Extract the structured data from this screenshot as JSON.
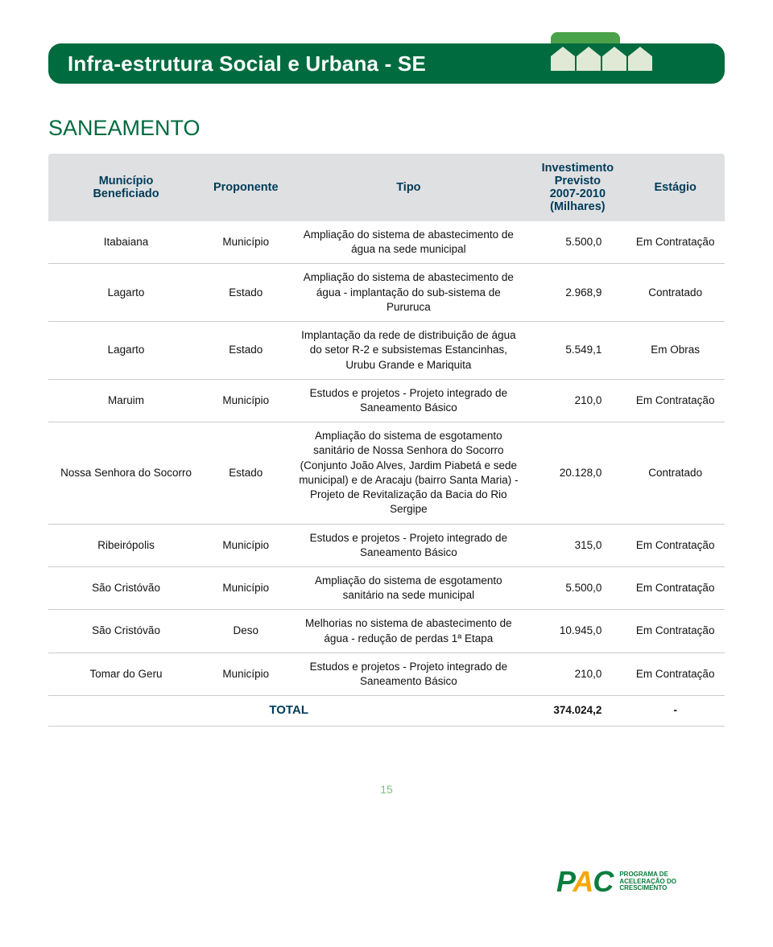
{
  "header": {
    "title": "Infra-estrutura Social e Urbana - SE"
  },
  "section": {
    "title": "SANEAMENTO"
  },
  "table": {
    "columns": {
      "col0": "Município\nBeneficiado",
      "col1": "Proponente",
      "col2": "Tipo",
      "col3": "Investimento\nPrevisto\n2007-2010\n(Milhares)",
      "col4": "Estágio"
    },
    "rows": [
      {
        "mun": "Itabaiana",
        "prop": "Município",
        "tipo": "Ampliação do sistema de abastecimento de água na sede municipal",
        "inv": "5.500,0",
        "est": "Em Contratação"
      },
      {
        "mun": "Lagarto",
        "prop": "Estado",
        "tipo": "Ampliação do sistema de abastecimento de água - implantação do sub-sistema de Pururuca",
        "inv": "2.968,9",
        "est": "Contratado"
      },
      {
        "mun": "Lagarto",
        "prop": "Estado",
        "tipo": "Implantação da rede de distribuição de água do setor R-2 e subsistemas Estancinhas, Urubu Grande e Mariquita",
        "inv": "5.549,1",
        "est": "Em Obras"
      },
      {
        "mun": "Maruim",
        "prop": "Município",
        "tipo": "Estudos e projetos - Projeto integrado de Saneamento Básico",
        "inv": "210,0",
        "est": "Em Contratação"
      },
      {
        "mun": "Nossa Senhora do Socorro",
        "prop": "Estado",
        "tipo": "Ampliação do sistema de esgotamento sanitário de Nossa Senhora do Socorro (Conjunto João Alves, Jardim Piabetá e sede municipal) e de Aracaju (bairro Santa Maria) - Projeto de Revitalização da Bacia do Rio Sergipe",
        "inv": "20.128,0",
        "est": "Contratado"
      },
      {
        "mun": "Ribeirópolis",
        "prop": "Município",
        "tipo": "Estudos e projetos - Projeto integrado de Saneamento Básico",
        "inv": "315,0",
        "est": "Em Contratação"
      },
      {
        "mun": "São Cristóvão",
        "prop": "Município",
        "tipo": "Ampliação do sistema de esgotamento sanitário na sede municipal",
        "inv": "5.500,0",
        "est": "Em Contratação"
      },
      {
        "mun": "São Cristóvão",
        "prop": "Deso",
        "tipo": "Melhorias no sistema de abastecimento de água - redução de perdas 1ª Etapa",
        "inv": "10.945,0",
        "est": "Em Contratação"
      },
      {
        "mun": "Tomar do Geru",
        "prop": "Município",
        "tipo": "Estudos e projetos - Projeto integrado de Saneamento Básico",
        "inv": "210,0",
        "est": "Em Contratação"
      }
    ],
    "total": {
      "label": "TOTAL",
      "value": "374.024,2",
      "dash": "-"
    },
    "colWidthsPct": [
      17,
      13,
      36,
      17,
      17
    ],
    "colors": {
      "headerBg": "#dfe0e2",
      "headerText": "#003c5a",
      "rowBorder": "#c9cccf",
      "cellText": "#111111"
    }
  },
  "pageNumber": "15",
  "footer": {
    "logoText1": "P",
    "logoText2": "A",
    "logoText3": "C",
    "tagline1": "PROGRAMA DE",
    "tagline2": "ACELERAÇÃO DO",
    "tagline3": "CRESCIMENTO",
    "colors": {
      "green": "#0a7d3e",
      "orange": "#f7a600"
    }
  },
  "styling": {
    "bannerBg": "#006b3f",
    "bannerTabBg": "#4aa24a",
    "bannerTitleColor": "#ffffff",
    "sectionTitleColor": "#006b3f",
    "pageNumberColor": "#7ec17e",
    "bodyBg": "#ffffff",
    "fontSizes": {
      "bannerTitle": 26,
      "sectionTitle": 27,
      "tableHeader": 14.5,
      "tableCell": 13.5,
      "footerPac": 36,
      "footerTag": 8
    }
  }
}
